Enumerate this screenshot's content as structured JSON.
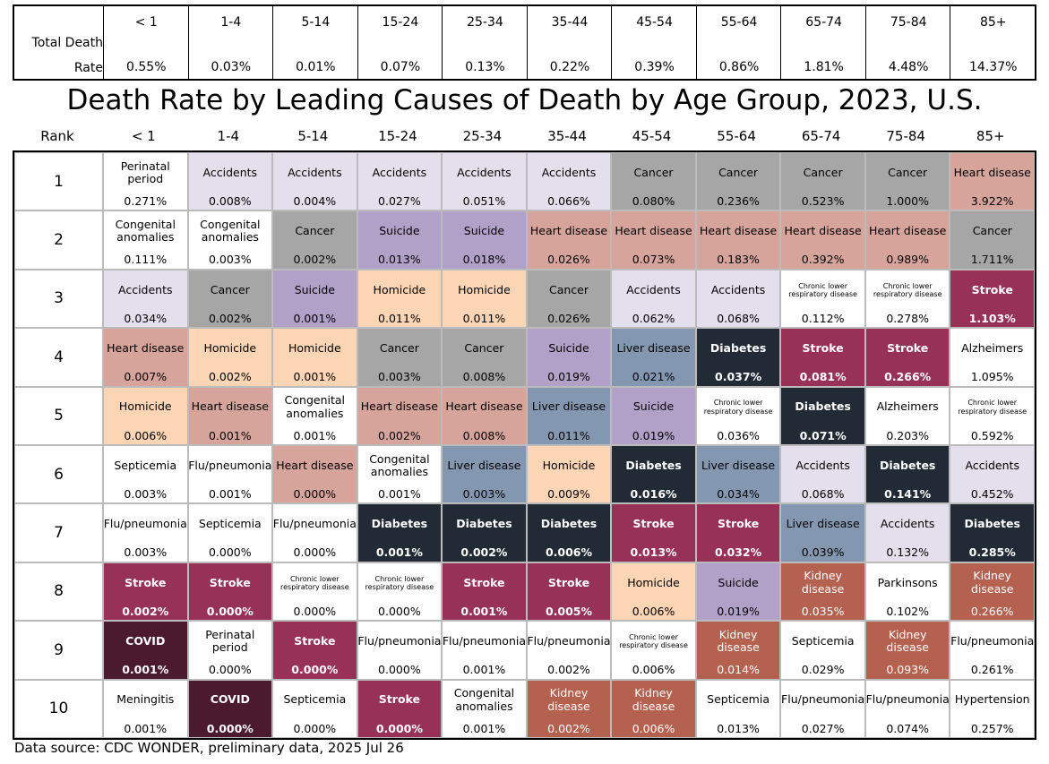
{
  "header": {
    "total_label": "Total Death Rate",
    "age_groups": [
      "< 1",
      "1-4",
      "5-14",
      "15-24",
      "25-34",
      "35-44",
      "45-54",
      "55-64",
      "65-74",
      "75-84",
      "85+"
    ],
    "total_rates": [
      "0.55%",
      "0.03%",
      "0.01%",
      "0.07%",
      "0.13%",
      "0.22%",
      "0.39%",
      "0.86%",
      "1.81%",
      "4.48%",
      "14.37%"
    ]
  },
  "title": "Death Rate by Leading Causes of Death by Age Group, 2023, U.S.",
  "rank_label": "Rank",
  "rows": [
    {
      "rank": 1,
      "cells": [
        {
          "cause": "Perinatal period",
          "rate": "0.271%"
        },
        {
          "cause": "Accidents",
          "rate": "0.008%"
        },
        {
          "cause": "Accidents",
          "rate": "0.004%"
        },
        {
          "cause": "Accidents",
          "rate": "0.027%"
        },
        {
          "cause": "Accidents",
          "rate": "0.051%"
        },
        {
          "cause": "Accidents",
          "rate": "0.066%"
        },
        {
          "cause": "Cancer",
          "rate": "0.080%"
        },
        {
          "cause": "Cancer",
          "rate": "0.236%"
        },
        {
          "cause": "Cancer",
          "rate": "0.523%"
        },
        {
          "cause": "Cancer",
          "rate": "1.000%"
        },
        {
          "cause": "Heart disease",
          "rate": "3.922%"
        }
      ]
    },
    {
      "rank": 2,
      "cells": [
        {
          "cause": "Congenital anomalies",
          "rate": "0.111%"
        },
        {
          "cause": "Congenital anomalies",
          "rate": "0.003%"
        },
        {
          "cause": "Cancer",
          "rate": "0.002%"
        },
        {
          "cause": "Suicide",
          "rate": "0.013%"
        },
        {
          "cause": "Suicide",
          "rate": "0.018%"
        },
        {
          "cause": "Heart disease",
          "rate": "0.026%"
        },
        {
          "cause": "Heart disease",
          "rate": "0.073%"
        },
        {
          "cause": "Heart disease",
          "rate": "0.183%"
        },
        {
          "cause": "Heart disease",
          "rate": "0.392%"
        },
        {
          "cause": "Heart disease",
          "rate": "0.989%"
        },
        {
          "cause": "Cancer",
          "rate": "1.711%"
        }
      ]
    },
    {
      "rank": 3,
      "cells": [
        {
          "cause": "Accidents",
          "rate": "0.034%"
        },
        {
          "cause": "Cancer",
          "rate": "0.002%"
        },
        {
          "cause": "Suicide",
          "rate": "0.001%"
        },
        {
          "cause": "Homicide",
          "rate": "0.011%"
        },
        {
          "cause": "Homicide",
          "rate": "0.011%"
        },
        {
          "cause": "Cancer",
          "rate": "0.026%"
        },
        {
          "cause": "Accidents",
          "rate": "0.062%"
        },
        {
          "cause": "Accidents",
          "rate": "0.068%"
        },
        {
          "cause": "Chronic lower respiratory disease",
          "rate": "0.112%"
        },
        {
          "cause": "Chronic lower respiratory disease",
          "rate": "0.278%"
        },
        {
          "cause": "Stroke",
          "rate": "1.103%"
        }
      ]
    },
    {
      "rank": 4,
      "cells": [
        {
          "cause": "Heart disease",
          "rate": "0.007%"
        },
        {
          "cause": "Homicide",
          "rate": "0.002%"
        },
        {
          "cause": "Homicide",
          "rate": "0.001%"
        },
        {
          "cause": "Cancer",
          "rate": "0.003%"
        },
        {
          "cause": "Cancer",
          "rate": "0.008%"
        },
        {
          "cause": "Suicide",
          "rate": "0.019%"
        },
        {
          "cause": "Liver disease",
          "rate": "0.021%"
        },
        {
          "cause": "Diabetes",
          "rate": "0.037%"
        },
        {
          "cause": "Stroke",
          "rate": "0.081%"
        },
        {
          "cause": "Stroke",
          "rate": "0.266%"
        },
        {
          "cause": "Alzheimers",
          "rate": "1.095%"
        }
      ]
    },
    {
      "rank": 5,
      "cells": [
        {
          "cause": "Homicide",
          "rate": "0.006%"
        },
        {
          "cause": "Heart disease",
          "rate": "0.001%"
        },
        {
          "cause": "Congenital anomalies",
          "rate": "0.001%"
        },
        {
          "cause": "Heart disease",
          "rate": "0.002%"
        },
        {
          "cause": "Heart disease",
          "rate": "0.008%"
        },
        {
          "cause": "Liver disease",
          "rate": "0.011%"
        },
        {
          "cause": "Suicide",
          "rate": "0.019%"
        },
        {
          "cause": "Chronic lower respiratory disease",
          "rate": "0.036%"
        },
        {
          "cause": "Diabetes",
          "rate": "0.071%"
        },
        {
          "cause": "Alzheimers",
          "rate": "0.203%"
        },
        {
          "cause": "Chronic lower respiratory disease",
          "rate": "0.592%"
        }
      ]
    },
    {
      "rank": 6,
      "cells": [
        {
          "cause": "Septicemia",
          "rate": "0.003%"
        },
        {
          "cause": "Flu/pneumonia",
          "rate": "0.001%"
        },
        {
          "cause": "Heart disease",
          "rate": "0.000%"
        },
        {
          "cause": "Congenital anomalies",
          "rate": "0.001%"
        },
        {
          "cause": "Liver disease",
          "rate": "0.003%"
        },
        {
          "cause": "Homicide",
          "rate": "0.009%"
        },
        {
          "cause": "Diabetes",
          "rate": "0.016%"
        },
        {
          "cause": "Liver disease",
          "rate": "0.034%"
        },
        {
          "cause": "Accidents",
          "rate": "0.068%"
        },
        {
          "cause": "Diabetes",
          "rate": "0.141%"
        },
        {
          "cause": "Accidents",
          "rate": "0.452%"
        }
      ]
    },
    {
      "rank": 7,
      "cells": [
        {
          "cause": "Flu/pneumonia",
          "rate": "0.003%"
        },
        {
          "cause": "Septicemia",
          "rate": "0.000%"
        },
        {
          "cause": "Flu/pneumonia",
          "rate": "0.000%"
        },
        {
          "cause": "Diabetes",
          "rate": "0.001%"
        },
        {
          "cause": "Diabetes",
          "rate": "0.002%"
        },
        {
          "cause": "Diabetes",
          "rate": "0.006%"
        },
        {
          "cause": "Stroke",
          "rate": "0.013%"
        },
        {
          "cause": "Stroke",
          "rate": "0.032%"
        },
        {
          "cause": "Liver disease",
          "rate": "0.039%"
        },
        {
          "cause": "Accidents",
          "rate": "0.132%"
        },
        {
          "cause": "Diabetes",
          "rate": "0.285%"
        }
      ]
    },
    {
      "rank": 8,
      "cells": [
        {
          "cause": "Stroke",
          "rate": "0.002%"
        },
        {
          "cause": "Stroke",
          "rate": "0.000%"
        },
        {
          "cause": "Chronic lower respiratory disease",
          "rate": "0.000%"
        },
        {
          "cause": "Chronic lower respiratory disease",
          "rate": "0.000%"
        },
        {
          "cause": "Stroke",
          "rate": "0.001%"
        },
        {
          "cause": "Stroke",
          "rate": "0.005%"
        },
        {
          "cause": "Homicide",
          "rate": "0.006%"
        },
        {
          "cause": "Suicide",
          "rate": "0.019%"
        },
        {
          "cause": "Kidney disease",
          "rate": "0.035%"
        },
        {
          "cause": "Parkinsons",
          "rate": "0.102%"
        },
        {
          "cause": "Kidney disease",
          "rate": "0.266%"
        }
      ]
    },
    {
      "rank": 9,
      "cells": [
        {
          "cause": "COVID",
          "rate": "0.001%"
        },
        {
          "cause": "Perinatal period",
          "rate": "0.000%"
        },
        {
          "cause": "Stroke",
          "rate": "0.000%"
        },
        {
          "cause": "Flu/pneumonia",
          "rate": "0.000%"
        },
        {
          "cause": "Flu/pneumonia",
          "rate": "0.001%"
        },
        {
          "cause": "Flu/pneumonia",
          "rate": "0.002%"
        },
        {
          "cause": "Chronic lower respiratory disease",
          "rate": "0.006%"
        },
        {
          "cause": "Kidney disease",
          "rate": "0.014%"
        },
        {
          "cause": "Septicemia",
          "rate": "0.029%"
        },
        {
          "cause": "Kidney disease",
          "rate": "0.093%"
        },
        {
          "cause": "Flu/pneumonia",
          "rate": "0.261%"
        }
      ]
    },
    {
      "rank": 10,
      "cells": [
        {
          "cause": "Meningitis",
          "rate": "0.001%"
        },
        {
          "cause": "COVID",
          "rate": "0.000%"
        },
        {
          "cause": "Septicemia",
          "rate": "0.000%"
        },
        {
          "cause": "Stroke",
          "rate": "0.000%"
        },
        {
          "cause": "Congenital anomalies",
          "rate": "0.001%"
        },
        {
          "cause": "Kidney disease",
          "rate": "0.002%"
        },
        {
          "cause": "Kidney disease",
          "rate": "0.006%"
        },
        {
          "cause": "Septicemia",
          "rate": "0.013%"
        },
        {
          "cause": "Flu/pneumonia",
          "rate": "0.027%"
        },
        {
          "cause": "Flu/pneumonia",
          "rate": "0.074%"
        },
        {
          "cause": "Hypertension",
          "rate": "0.257%"
        }
      ]
    }
  ],
  "source": "Data source: CDC WONDER, preliminary data, 2025 Jul 26",
  "cause_colors": {
    "Accidents": [
      "#e4dfec",
      "#000000"
    ],
    "Cancer": [
      "#a6a6a6",
      "#000000"
    ],
    "Suicide": [
      "#b1a0c7",
      "#000000"
    ],
    "Homicide": [
      "#fcd5b4",
      "#000000"
    ],
    "Heart disease": [
      "#d6a49a",
      "#000000"
    ],
    "Liver disease": [
      "#8497b0",
      "#000000"
    ],
    "Diabetes": [
      "#222b35",
      "#ffffff"
    ],
    "Stroke": [
      "#973156",
      "#ffffff"
    ],
    "Kidney disease": [
      "#b5614f",
      "#ffffff"
    ],
    "COVID": [
      "#4b1a2d",
      "#ffffff"
    ]
  }
}
